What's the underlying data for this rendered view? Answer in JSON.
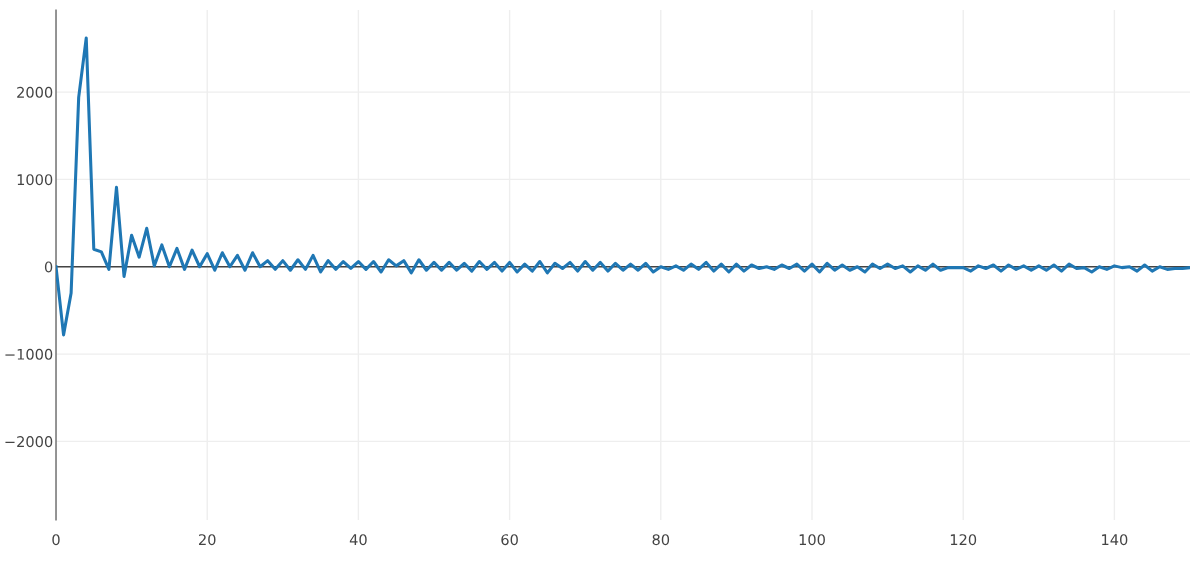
{
  "chart_data": {
    "type": "line",
    "x": [
      0,
      1,
      2,
      3,
      4,
      5,
      6,
      7,
      8,
      9,
      10,
      11,
      12,
      13,
      14,
      15,
      16,
      17,
      18,
      19,
      20,
      21,
      22,
      23,
      24,
      25,
      26,
      27,
      28,
      29,
      30,
      31,
      32,
      33,
      34,
      35,
      36,
      37,
      38,
      39,
      40,
      41,
      42,
      43,
      44,
      45,
      46,
      47,
      48,
      49,
      50,
      51,
      52,
      53,
      54,
      55,
      56,
      57,
      58,
      59,
      60,
      61,
      62,
      63,
      64,
      65,
      66,
      67,
      68,
      69,
      70,
      71,
      72,
      73,
      74,
      75,
      76,
      77,
      78,
      79,
      80,
      81,
      82,
      83,
      84,
      85,
      86,
      87,
      88,
      89,
      90,
      91,
      92,
      93,
      94,
      95,
      96,
      97,
      98,
      99,
      100,
      101,
      102,
      103,
      104,
      105,
      106,
      107,
      108,
      109,
      110,
      111,
      112,
      113,
      114,
      115,
      116,
      117,
      118,
      119,
      120,
      121,
      122,
      123,
      124,
      125,
      126,
      127,
      128,
      129,
      130,
      131,
      132,
      133,
      134,
      135,
      136,
      137,
      138,
      139,
      140,
      141,
      142,
      143,
      144,
      145,
      146,
      147,
      148,
      149,
      150
    ],
    "series": [
      {
        "color": "#1f77b4",
        "values": [
          0,
          -780,
          -300,
          1940,
          2620,
          200,
          170,
          -30,
          910,
          -110,
          360,
          110,
          440,
          10,
          250,
          0,
          210,
          -30,
          190,
          0,
          150,
          -40,
          160,
          0,
          130,
          -40,
          160,
          0,
          70,
          -30,
          70,
          -40,
          80,
          -30,
          130,
          -60,
          70,
          -30,
          60,
          -20,
          60,
          -30,
          60,
          -60,
          80,
          10,
          70,
          -70,
          80,
          -40,
          50,
          -40,
          50,
          -40,
          40,
          -50,
          60,
          -30,
          50,
          -50,
          50,
          -60,
          30,
          -50,
          60,
          -70,
          40,
          -20,
          50,
          -50,
          60,
          -40,
          50,
          -50,
          40,
          -40,
          30,
          -40,
          40,
          -60,
          0,
          -30,
          10,
          -40,
          30,
          -30,
          50,
          -50,
          30,
          -60,
          30,
          -50,
          20,
          -20,
          0,
          -30,
          20,
          -20,
          30,
          -50,
          30,
          -60,
          40,
          -40,
          20,
          -40,
          0,
          -60,
          30,
          -20,
          30,
          -20,
          10,
          -60,
          10,
          -40,
          30,
          -40,
          -10,
          -10,
          -10,
          -50,
          10,
          -20,
          20,
          -50,
          20,
          -30,
          10,
          -40,
          10,
          -40,
          20,
          -50,
          30,
          -20,
          -10,
          -60,
          0,
          -30,
          10,
          -10,
          0,
          -50,
          20,
          -50,
          0,
          -30,
          -20,
          -20,
          -10
        ]
      }
    ],
    "xlim": [
      0,
      150
    ],
    "xticks": [
      0,
      20,
      40,
      60,
      80,
      100,
      120,
      140
    ],
    "ylim": [
      -2900,
      2940
    ],
    "yticks": [
      {
        "value": -2000,
        "label": "−2000"
      },
      {
        "value": -1000,
        "label": "−1000"
      },
      0,
      1000,
      2000
    ],
    "grid": true,
    "marker": "none",
    "line_style": "solid",
    "ref_lines": [
      {
        "axis": "y",
        "value": 0,
        "color": "#444444"
      }
    ]
  }
}
